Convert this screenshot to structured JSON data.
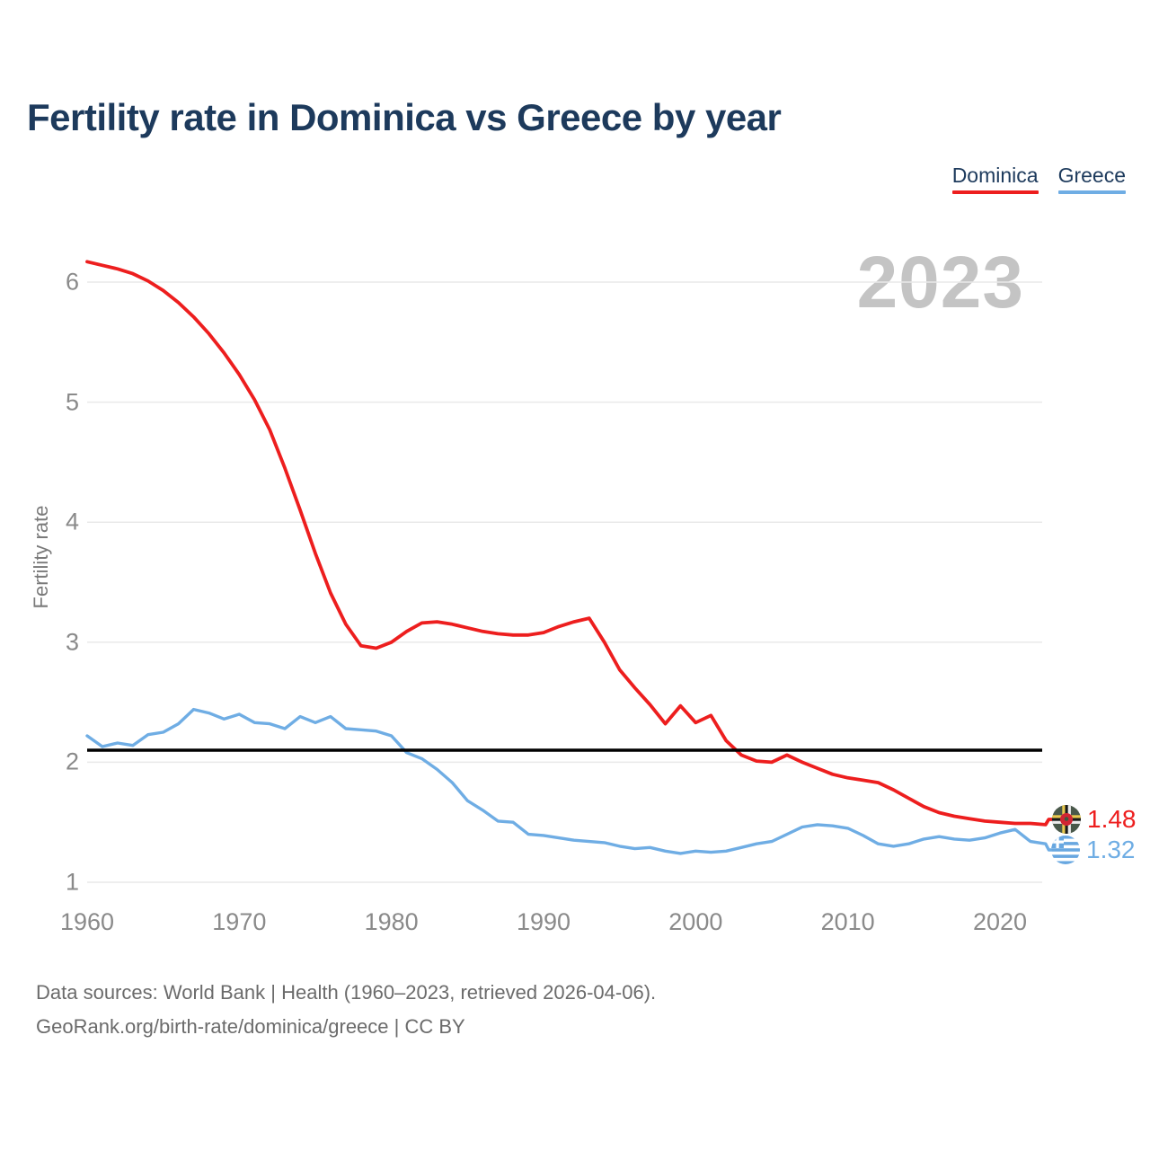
{
  "header": {
    "title": "Fertility rate in Dominica vs Greece by year"
  },
  "legend": {
    "items": [
      {
        "label": "Dominica",
        "color": "#ed1e1e"
      },
      {
        "label": "Greece",
        "color": "#6fade4"
      }
    ]
  },
  "chart": {
    "watermark": "2023"
  },
  "footer": {
    "line1": "Data sources: World Bank | Health (1960–2023, retrieved 2026-04-06).",
    "line2": "GeoRank.org/birth-rate/dominica/greece | CC BY"
  },
  "chart_data": {
    "type": "line",
    "title": "Fertility rate in Dominica vs Greece by year",
    "xlabel": "",
    "ylabel": "Fertility rate",
    "xlim": [
      1960,
      2023
    ],
    "ylim": [
      0.85,
      6.35
    ],
    "x_ticks": [
      1960,
      1970,
      1980,
      1990,
      2000,
      2010,
      2020
    ],
    "y_ticks": [
      1,
      2,
      3,
      4,
      5,
      6
    ],
    "grid": "horizontal",
    "legend_position": "top-right",
    "reference_line": {
      "value": 2.1,
      "color": "#000000"
    },
    "colors": {
      "grid": "#e9e9e9",
      "tick_text": "#8a8a8a",
      "watermark": "#c4c4c4"
    },
    "x": [
      1960,
      1961,
      1962,
      1963,
      1964,
      1965,
      1966,
      1967,
      1968,
      1969,
      1970,
      1971,
      1972,
      1973,
      1974,
      1975,
      1976,
      1977,
      1978,
      1979,
      1980,
      1981,
      1982,
      1983,
      1984,
      1985,
      1986,
      1987,
      1988,
      1989,
      1990,
      1991,
      1992,
      1993,
      1994,
      1995,
      1996,
      1997,
      1998,
      1999,
      2000,
      2001,
      2002,
      2003,
      2004,
      2005,
      2006,
      2007,
      2008,
      2009,
      2010,
      2011,
      2012,
      2013,
      2014,
      2015,
      2016,
      2017,
      2018,
      2019,
      2020,
      2021,
      2022,
      2023
    ],
    "series": [
      {
        "name": "Dominica",
        "color": "#ed1e1e",
        "end_label": "1.48",
        "values": [
          6.17,
          6.14,
          6.11,
          6.07,
          6.01,
          5.93,
          5.83,
          5.71,
          5.57,
          5.41,
          5.23,
          5.02,
          4.77,
          4.45,
          4.1,
          3.74,
          3.41,
          3.15,
          2.97,
          2.95,
          3.0,
          3.09,
          3.16,
          3.17,
          3.15,
          3.12,
          3.09,
          3.07,
          3.06,
          3.06,
          3.08,
          3.13,
          3.17,
          3.2,
          3.0,
          2.77,
          2.62,
          2.48,
          2.32,
          2.47,
          2.33,
          2.39,
          2.18,
          2.06,
          2.01,
          2.0,
          2.06,
          2.0,
          1.95,
          1.9,
          1.87,
          1.85,
          1.83,
          1.77,
          1.7,
          1.63,
          1.58,
          1.55,
          1.53,
          1.51,
          1.5,
          1.49,
          1.49,
          1.48
        ]
      },
      {
        "name": "Greece",
        "color": "#6fade4",
        "end_label": "1.32",
        "values": [
          2.22,
          2.13,
          2.16,
          2.14,
          2.23,
          2.25,
          2.32,
          2.44,
          2.41,
          2.36,
          2.4,
          2.33,
          2.32,
          2.28,
          2.38,
          2.33,
          2.38,
          2.28,
          2.27,
          2.26,
          2.22,
          2.08,
          2.03,
          1.94,
          1.83,
          1.68,
          1.6,
          1.51,
          1.5,
          1.4,
          1.39,
          1.37,
          1.35,
          1.34,
          1.33,
          1.3,
          1.28,
          1.29,
          1.26,
          1.24,
          1.26,
          1.25,
          1.26,
          1.29,
          1.32,
          1.34,
          1.4,
          1.46,
          1.48,
          1.47,
          1.45,
          1.39,
          1.32,
          1.3,
          1.32,
          1.36,
          1.38,
          1.36,
          1.35,
          1.37,
          1.41,
          1.44,
          1.34,
          1.32
        ]
      }
    ]
  }
}
